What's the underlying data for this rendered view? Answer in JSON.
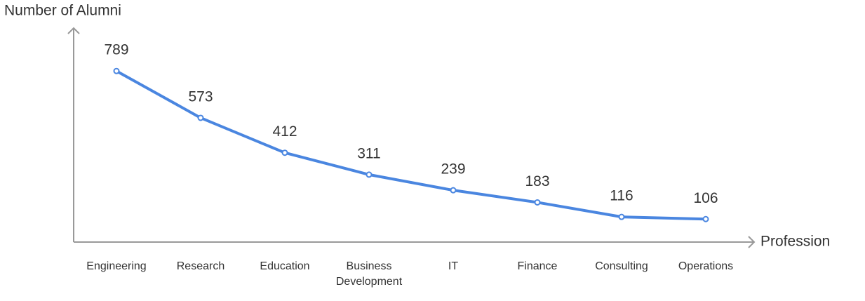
{
  "chart_data": {
    "type": "line",
    "y_label": "Number of Alumni",
    "x_label": "Profession",
    "categories": [
      "Engineering",
      "Research",
      "Education",
      "Business Development",
      "IT",
      "Finance",
      "Consulting",
      "Operations"
    ],
    "values": [
      789,
      573,
      412,
      311,
      239,
      183,
      116,
      106
    ],
    "color": "#4a86e0",
    "ylim": [
      0,
      1000
    ]
  }
}
